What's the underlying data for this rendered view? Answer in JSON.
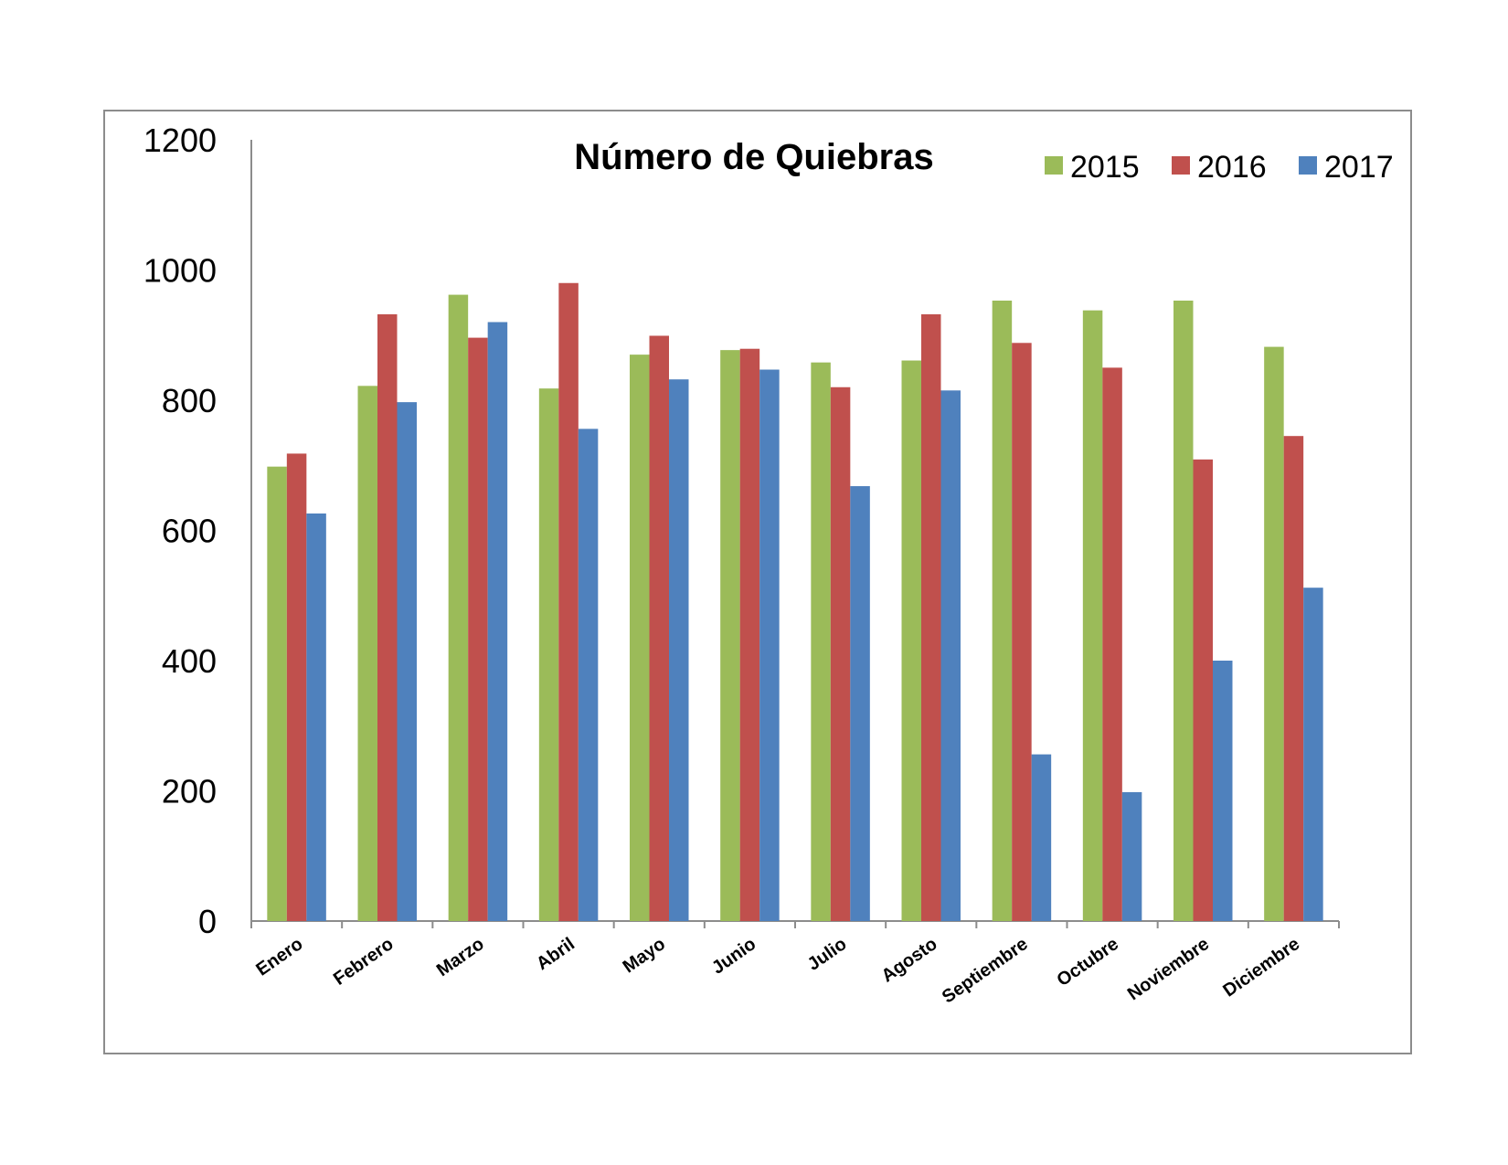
{
  "chart_data": {
    "type": "bar",
    "title": "Número de Quiebras",
    "xlabel": "",
    "ylabel": "",
    "ylim": [
      0,
      1200
    ],
    "yticks": [
      "0",
      "200",
      "400",
      "600",
      "800",
      "1000",
      "1200"
    ],
    "grid": false,
    "legend_position": "top-right",
    "categories": [
      "Enero",
      "Febrero",
      "Marzo",
      "Abril",
      "Mayo",
      "Junio",
      "Julio",
      "Agosto",
      "Septiembre",
      "Octubre",
      "Noviembre",
      "Diciembre"
    ],
    "series": [
      {
        "name": "2015",
        "color": "#9bbb59",
        "values": [
          698,
          822,
          962,
          818,
          870,
          877,
          858,
          861,
          953,
          938,
          953,
          882
        ]
      },
      {
        "name": "2016",
        "color": "#c0504d",
        "values": [
          718,
          932,
          896,
          980,
          899,
          879,
          820,
          932,
          888,
          850,
          709,
          745
        ]
      },
      {
        "name": "2017",
        "color": "#4f81bd",
        "values": [
          626,
          797,
          920,
          756,
          832,
          847,
          668,
          815,
          256,
          198,
          400,
          512
        ]
      }
    ]
  }
}
